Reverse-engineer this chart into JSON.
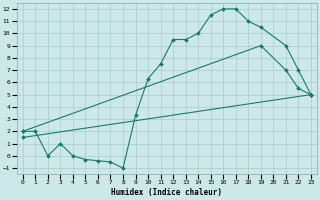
{
  "xlabel": "Humidex (Indice chaleur)",
  "bg_color": "#cce8e8",
  "grid_color": "#aacccc",
  "line_color": "#1a7a6a",
  "xlim": [
    -0.5,
    23.5
  ],
  "ylim": [
    -1.5,
    12.5
  ],
  "xticks": [
    0,
    1,
    2,
    3,
    4,
    5,
    6,
    7,
    8,
    9,
    10,
    11,
    12,
    13,
    14,
    15,
    16,
    17,
    18,
    19,
    20,
    21,
    22,
    23
  ],
  "yticks": [
    -1,
    0,
    1,
    2,
    3,
    4,
    5,
    6,
    7,
    8,
    9,
    10,
    11,
    12
  ],
  "curve1_x": [
    0,
    1,
    2,
    3,
    4,
    5,
    6,
    7,
    8,
    9,
    10,
    11,
    12,
    13,
    14,
    15,
    16,
    17,
    18,
    19,
    21,
    22,
    23
  ],
  "curve1_y": [
    2,
    2,
    0,
    1,
    0,
    -0.3,
    -0.4,
    -0.5,
    -1,
    3.3,
    6.3,
    7.5,
    9.5,
    9.5,
    10,
    11.5,
    12,
    12,
    11,
    10.5,
    9,
    7,
    5
  ],
  "curve2_x": [
    0,
    19,
    21,
    22,
    23
  ],
  "curve2_y": [
    2,
    9,
    7,
    5.5,
    5
  ],
  "curve3_x": [
    0,
    23
  ],
  "curve3_y": [
    1.5,
    5
  ]
}
